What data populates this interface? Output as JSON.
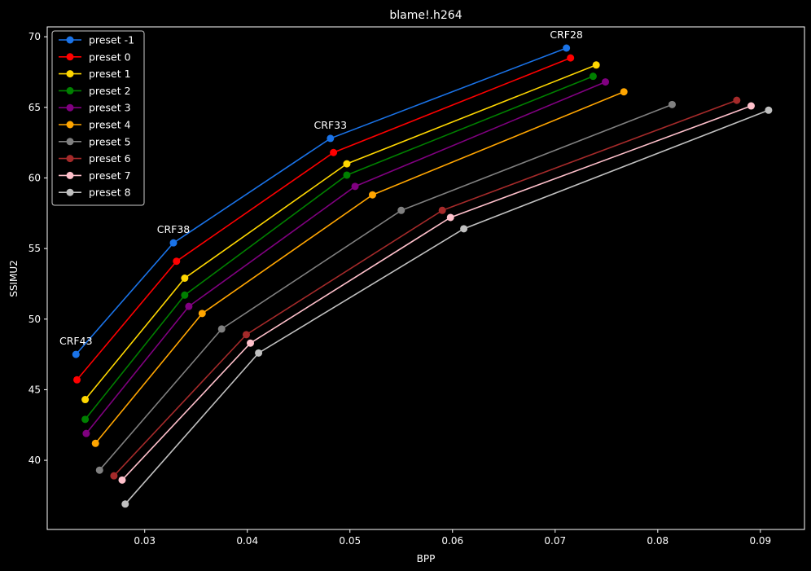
{
  "chart_data": {
    "type": "line",
    "title": "blame!.h264",
    "xlabel": "BPP",
    "ylabel": "SSIMU2",
    "xlim": [
      0.0205,
      0.0943
    ],
    "ylim": [
      35.1,
      70.7
    ],
    "xticks": [
      0.03,
      0.04,
      0.05,
      0.06,
      0.07,
      0.08,
      0.09
    ],
    "yticks": [
      40,
      45,
      50,
      55,
      60,
      65,
      70
    ],
    "grid": false,
    "legend_position": "top-left",
    "annotations": [
      {
        "text": "CRF43",
        "x": 0.0233,
        "y": 47.5
      },
      {
        "text": "CRF38",
        "x": 0.0328,
        "y": 55.4
      },
      {
        "text": "CRF33",
        "x": 0.0481,
        "y": 62.8
      },
      {
        "text": "CRF28",
        "x": 0.0711,
        "y": 69.2
      }
    ],
    "series": [
      {
        "name": "preset -1",
        "color": "#1a73e8",
        "x": [
          0.0233,
          0.0328,
          0.0481,
          0.0711
        ],
        "y": [
          47.5,
          55.4,
          62.8,
          69.2
        ]
      },
      {
        "name": "preset 0",
        "color": "#ff0000",
        "x": [
          0.0234,
          0.0331,
          0.0484,
          0.0715
        ],
        "y": [
          45.7,
          54.1,
          61.8,
          68.5
        ]
      },
      {
        "name": "preset 1",
        "color": "#ffd700",
        "x": [
          0.0242,
          0.0339,
          0.0497,
          0.074
        ],
        "y": [
          44.3,
          52.9,
          61.0,
          68.0
        ]
      },
      {
        "name": "preset 2",
        "color": "#008000",
        "x": [
          0.0242,
          0.0339,
          0.0497,
          0.0737
        ],
        "y": [
          42.9,
          51.7,
          60.2,
          67.2
        ]
      },
      {
        "name": "preset 3",
        "color": "#800080",
        "x": [
          0.0243,
          0.0343,
          0.0505,
          0.0749
        ],
        "y": [
          41.9,
          50.9,
          59.4,
          66.8
        ]
      },
      {
        "name": "preset 4",
        "color": "#ffa500",
        "x": [
          0.0252,
          0.0356,
          0.0522,
          0.0767
        ],
        "y": [
          41.2,
          50.4,
          58.8,
          66.1
        ]
      },
      {
        "name": "preset 5",
        "color": "#808080",
        "x": [
          0.0256,
          0.0375,
          0.055,
          0.0814
        ],
        "y": [
          39.3,
          49.3,
          57.7,
          65.2
        ]
      },
      {
        "name": "preset 6",
        "color": "#a52a2a",
        "x": [
          0.027,
          0.0399,
          0.059,
          0.0877
        ],
        "y": [
          38.9,
          48.9,
          57.7,
          65.5
        ]
      },
      {
        "name": "preset 7",
        "color": "#ffc0cb",
        "x": [
          0.0278,
          0.0403,
          0.0598,
          0.0891
        ],
        "y": [
          38.6,
          48.3,
          57.2,
          65.1
        ]
      },
      {
        "name": "preset 8",
        "color": "#c0c0c0",
        "x": [
          0.0281,
          0.0411,
          0.0611,
          0.0908
        ],
        "y": [
          36.9,
          47.6,
          56.4,
          64.8
        ]
      }
    ]
  }
}
